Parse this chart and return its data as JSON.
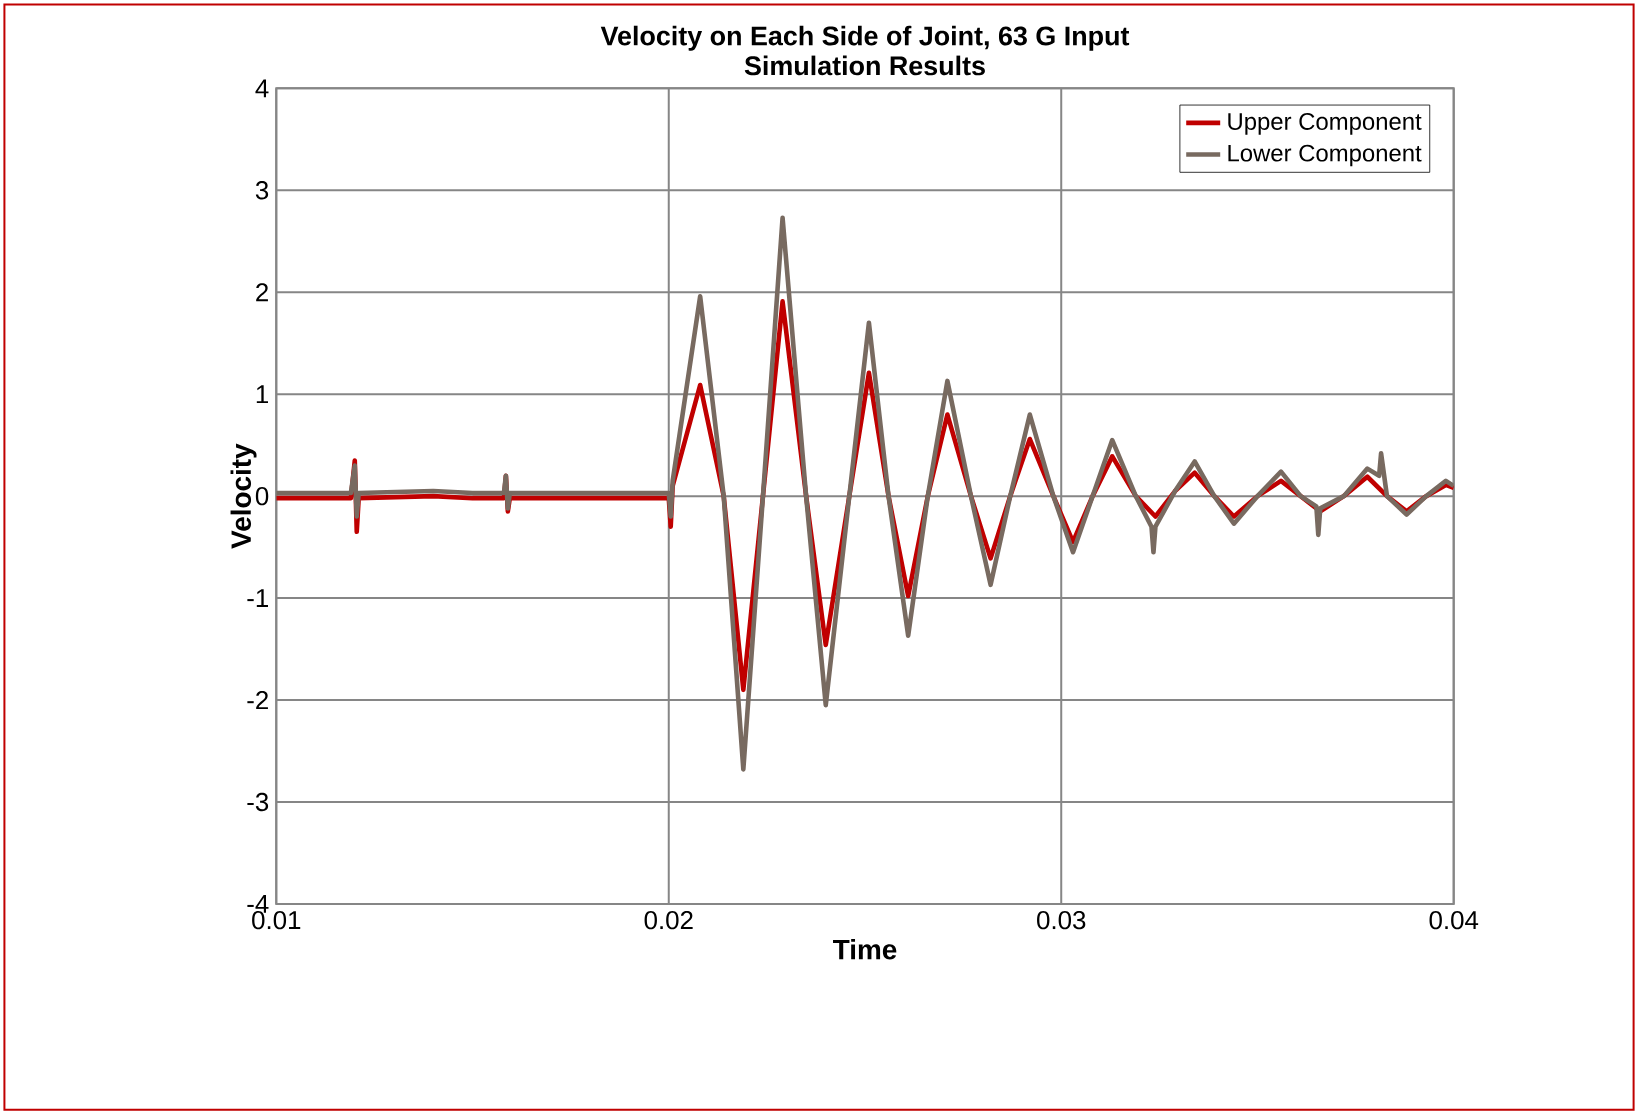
{
  "chart_data": {
    "type": "line",
    "title": "Velocity on Each Side of Joint, 63 G Input\nSimulation Results",
    "xlabel": "Time",
    "ylabel": "Velocity",
    "xlim": [
      0.01,
      0.04
    ],
    "xticks": [
      0.01,
      0.02,
      0.03,
      0.04
    ],
    "ylim": [
      -4,
      4
    ],
    "yticks": [
      -4,
      -3,
      -2,
      -1,
      0,
      1,
      2,
      3,
      4
    ],
    "grid": true,
    "legend": "top right",
    "marker": "none",
    "line_style": "solid",
    "series": [
      {
        "name": "Upper Component",
        "color": "#c00000",
        "x": [
          0.01,
          0.0119,
          0.012,
          0.01205,
          0.0121,
          0.014,
          0.015,
          0.0158,
          0.01585,
          0.0159,
          0.01595,
          0.018,
          0.02,
          0.02005,
          0.0201,
          0.0208,
          0.0214,
          0.0219,
          0.0224,
          0.0229,
          0.0235,
          0.024,
          0.0246,
          0.0251,
          0.0256,
          0.0261,
          0.0266,
          0.0271,
          0.0277,
          0.0282,
          0.0287,
          0.0292,
          0.0298,
          0.0303,
          0.0308,
          0.0313,
          0.0319,
          0.0324,
          0.0329,
          0.0334,
          0.0339,
          0.0344,
          0.035,
          0.0356,
          0.0361,
          0.0366,
          0.0372,
          0.0378,
          0.0383,
          0.0388,
          0.0393,
          0.0398,
          0.04
        ],
        "values": [
          -0.02,
          -0.02,
          0.35,
          -0.35,
          -0.02,
          0,
          -0.02,
          -0.02,
          0.2,
          -0.15,
          -0.02,
          -0.02,
          -0.02,
          -0.3,
          0.1,
          1.09,
          0,
          -1.9,
          0,
          1.91,
          0,
          -1.46,
          0,
          1.21,
          0,
          -0.98,
          0,
          0.8,
          0,
          -0.61,
          0,
          0.56,
          0,
          -0.45,
          0,
          0.39,
          0,
          -0.2,
          0.05,
          0.23,
          0,
          -0.2,
          0,
          0.15,
          0,
          -0.15,
          0,
          0.19,
          0,
          -0.15,
          0,
          0.11,
          0.08
        ]
      },
      {
        "name": "Lower Component",
        "color": "#786a60",
        "x": [
          0.01,
          0.0119,
          0.012,
          0.01205,
          0.0121,
          0.014,
          0.015,
          0.0158,
          0.01585,
          0.0159,
          0.01595,
          0.018,
          0.02,
          0.02005,
          0.0201,
          0.0208,
          0.0214,
          0.0219,
          0.0224,
          0.0229,
          0.0235,
          0.024,
          0.0246,
          0.0251,
          0.0256,
          0.0261,
          0.0266,
          0.0271,
          0.0277,
          0.0282,
          0.0287,
          0.0292,
          0.0298,
          0.0303,
          0.0308,
          0.0313,
          0.0319,
          0.0323,
          0.03235,
          0.0324,
          0.0329,
          0.0334,
          0.0339,
          0.0344,
          0.035,
          0.0356,
          0.0361,
          0.0365,
          0.03655,
          0.0366,
          0.0372,
          0.0378,
          0.0381,
          0.03815,
          0.0383,
          0.0388,
          0.0393,
          0.0398,
          0.04
        ],
        "values": [
          0.03,
          0.03,
          0.3,
          -0.2,
          0.03,
          0.05,
          0.03,
          0.03,
          0.2,
          -0.12,
          0.03,
          0.03,
          0.03,
          -0.2,
          0.15,
          1.96,
          0,
          -2.68,
          0,
          2.73,
          0,
          -2.05,
          0,
          1.7,
          0,
          -1.37,
          0,
          1.13,
          0,
          -0.87,
          0,
          0.8,
          0,
          -0.55,
          0,
          0.55,
          0,
          -0.3,
          -0.55,
          -0.3,
          0.05,
          0.34,
          0,
          -0.27,
          0,
          0.24,
          0,
          -0.1,
          -0.38,
          -0.12,
          0,
          0.27,
          0.2,
          0.42,
          0,
          -0.18,
          0,
          0.15,
          0.1
        ]
      }
    ]
  }
}
